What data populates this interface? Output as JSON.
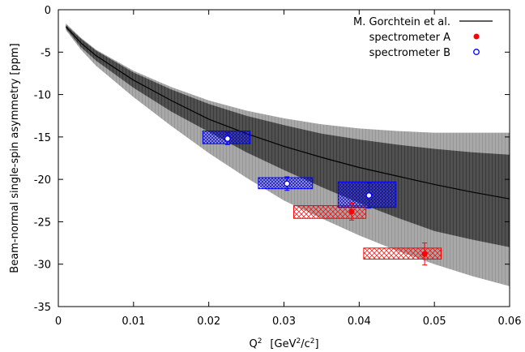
{
  "chart_data": {
    "type": "scatter",
    "xlabel": {
      "main": "Q",
      "sup": "2",
      "unit_open": "[GeV",
      "unit_sup": "2",
      "unit_mid": "/c",
      "unit_sup2": "2",
      "unit_close": "]"
    },
    "ylabel": "Beam-normal single-spin asymmetry [ppm]",
    "xlim": [
      0,
      0.06
    ],
    "ylim": [
      -35,
      0
    ],
    "x_ticks": [
      0,
      0.01,
      0.02,
      0.03,
      0.04,
      0.05,
      0.06
    ],
    "x_tick_labels": [
      "0",
      "0.01",
      "0.02",
      "0.03",
      "0.04",
      "0.05",
      "0.06"
    ],
    "y_ticks": [
      0,
      -5,
      -10,
      -15,
      -20,
      -25,
      -30,
      -35
    ],
    "y_tick_labels": [
      "0",
      "-5",
      "-10",
      "-15",
      "-20",
      "-25",
      "-30",
      "-35"
    ],
    "legend": {
      "placement": "top-right",
      "entries": [
        {
          "label": "M. Gorchtein et al.",
          "style": "line",
          "color": "#000000"
        },
        {
          "label": "spectrometer A",
          "style": "filled-circle",
          "color": "#ff0000"
        },
        {
          "label": "spectrometer B",
          "style": "open-circle",
          "color": "#0000ff"
        }
      ]
    },
    "theory": {
      "name": "M. Gorchtein et al.",
      "x": [
        0.001,
        0.003,
        0.005,
        0.01,
        0.015,
        0.02,
        0.025,
        0.03,
        0.035,
        0.04,
        0.045,
        0.05,
        0.055,
        0.06
      ],
      "central": [
        -2.0,
        -3.9,
        -5.4,
        -8.3,
        -10.7,
        -12.9,
        -14.6,
        -16.1,
        -17.4,
        -18.6,
        -19.6,
        -20.6,
        -21.5,
        -22.3
      ],
      "inner_upper": [
        -1.8,
        -3.4,
        -4.8,
        -7.4,
        -9.4,
        -11.1,
        -12.5,
        -13.6,
        -14.6,
        -15.3,
        -15.9,
        -16.4,
        -16.8,
        -17.1
      ],
      "inner_lower": [
        -2.2,
        -4.4,
        -6.0,
        -9.2,
        -12.0,
        -14.4,
        -16.8,
        -18.9,
        -20.9,
        -22.8,
        -24.5,
        -26.1,
        -27.1,
        -28.0
      ],
      "outer_upper": [
        -1.6,
        -3.3,
        -4.7,
        -7.2,
        -9.1,
        -10.7,
        -11.9,
        -12.8,
        -13.5,
        -14.0,
        -14.3,
        -14.5,
        -14.5,
        -14.5
      ],
      "outer_lower": [
        -2.4,
        -4.7,
        -6.6,
        -10.3,
        -13.7,
        -16.9,
        -19.8,
        -22.5,
        -24.6,
        -26.6,
        -28.4,
        -30.0,
        -31.4,
        -32.6
      ],
      "inner_color": "#505050",
      "outer_color": "#a8a8a8",
      "line_color": "#000000"
    },
    "series": [
      {
        "name": "spectrometer A",
        "color": "#ff0000",
        "marker": "filled-circle",
        "points": [
          {
            "x": 0.039,
            "y": -23.8,
            "yerr": 1.0,
            "sys_xmin": 0.0313,
            "sys_xmax": 0.0409,
            "sys_ymin": -24.6,
            "sys_ymax": -23.1
          },
          {
            "x": 0.0487,
            "y": -28.8,
            "yerr": 1.3,
            "sys_xmin": 0.0406,
            "sys_xmax": 0.0509,
            "sys_ymin": -29.4,
            "sys_ymax": -28.1
          }
        ]
      },
      {
        "name": "spectrometer B",
        "color": "#0000ff",
        "marker": "open-circle",
        "points": [
          {
            "x": 0.0225,
            "y": -15.2,
            "yerr": 0.7,
            "sys_xmin": 0.0192,
            "sys_xmax": 0.0255,
            "sys_ymin": -15.8,
            "sys_ymax": -14.3
          },
          {
            "x": 0.0304,
            "y": -20.5,
            "yerr": 0.8,
            "sys_xmin": 0.0266,
            "sys_xmax": 0.0338,
            "sys_ymin": -21.1,
            "sys_ymax": -19.8
          },
          {
            "x": 0.0413,
            "y": -21.9,
            "yerr": 1.5,
            "sys_xmin": 0.0372,
            "sys_xmax": 0.0449,
            "sys_ymin": -23.3,
            "sys_ymax": -20.3
          }
        ]
      }
    ]
  }
}
